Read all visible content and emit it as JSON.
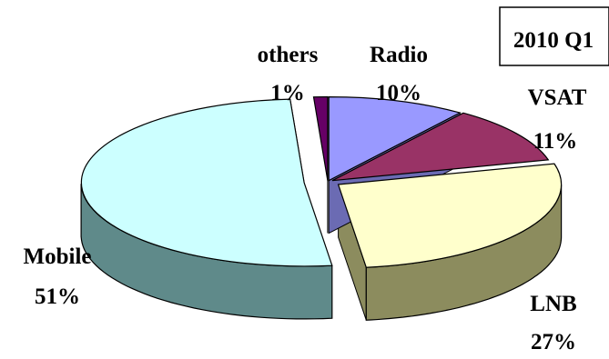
{
  "chart_data": {
    "type": "pie",
    "title": "2010 Q1",
    "three_d": true,
    "legend": "none",
    "slices": [
      {
        "label": "Radio",
        "value": 10,
        "value_text": "10%",
        "color": "#9999ff",
        "side_color": "#6b6bb3"
      },
      {
        "label": "VSAT",
        "value": 11,
        "value_text": "11%",
        "color": "#993366",
        "side_color": "#5e1f3e"
      },
      {
        "label": "LNB",
        "value": 27,
        "value_text": "27%",
        "color": "#ffffcc",
        "side_color": "#8c8c5e"
      },
      {
        "label": "Mobile",
        "value": 51,
        "value_text": "51%",
        "color": "#ccffff",
        "side_color": "#5f8a8a"
      },
      {
        "label": "others",
        "value": 1,
        "value_text": "1%",
        "color": "#660066",
        "side_color": "#3d003d"
      }
    ]
  }
}
